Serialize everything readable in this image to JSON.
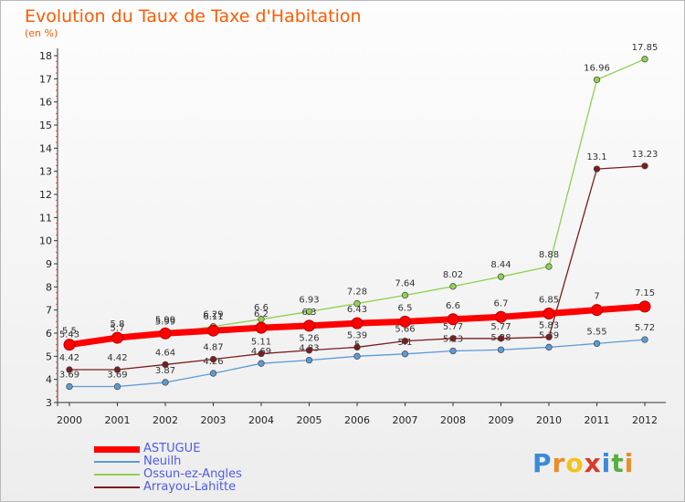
{
  "chart_data": {
    "type": "line",
    "title": "Evolution du Taux de Taxe d'Habitation",
    "unit_label": "(en %)",
    "x": [
      "2000",
      "2001",
      "2002",
      "2003",
      "2004",
      "2005",
      "2006",
      "2007",
      "2008",
      "2009",
      "2010",
      "2011",
      "2012"
    ],
    "ylim": [
      3,
      18
    ],
    "yticks": [
      3,
      4,
      5,
      6,
      7,
      8,
      9,
      10,
      11,
      12,
      13,
      14,
      15,
      16,
      17,
      18
    ],
    "grid": false,
    "legend_position": "bottom-left",
    "series": [
      {
        "name": "ASTUGUE",
        "color": "#ff0000",
        "values": [
          5.5,
          5.8,
          5.99,
          6.11,
          6.23,
          6.32,
          6.43,
          6.5,
          6.6,
          6.7,
          6.85,
          7,
          7.15
        ],
        "labels": [
          "5.5",
          "5.8",
          "5.99",
          "6.11",
          "6.2",
          "6.3",
          "6.43",
          "6.5",
          "6.6",
          "6.7",
          "6.85",
          "7",
          "7.15"
        ]
      },
      {
        "name": "Neuilh",
        "color": "#5b9bd5",
        "values": [
          3.69,
          3.69,
          3.87,
          4.26,
          4.69,
          4.83,
          5,
          5.1,
          5.23,
          5.28,
          5.39,
          5.55,
          5.72
        ],
        "labels": [
          "3.69",
          "3.69",
          "3.87",
          "4.26",
          "4.69",
          "4.83",
          "5",
          "5.1",
          "5.23",
          "5.28",
          "5.39",
          "5.55",
          "5.72"
        ]
      },
      {
        "name": "Ossun-ez-Angles",
        "color": "#8fd14f",
        "values": [
          5.43,
          5.7,
          5.99,
          6.29,
          6.6,
          6.93,
          7.28,
          7.64,
          8.02,
          8.44,
          8.88,
          16.96,
          17.85
        ],
        "labels": [
          "5.43",
          "5.7",
          "5.99",
          "6.29",
          "6.6",
          "6.93",
          "7.28",
          "7.64",
          "8.02",
          "8.44",
          "8.88",
          "16.96",
          "17.85"
        ]
      },
      {
        "name": "Arrayou-Lahitte",
        "color": "#7b1d1d",
        "values": [
          4.42,
          4.42,
          4.64,
          4.87,
          5.11,
          5.26,
          5.39,
          5.66,
          5.77,
          5.77,
          5.83,
          13.1,
          13.23
        ],
        "labels": [
          "4.42",
          "4.42",
          "4.64",
          "4.87",
          "5.11",
          "5.26",
          "5.39",
          "5.66",
          "5.77",
          "5.77",
          "5.83",
          "13.1",
          "13.23"
        ]
      }
    ]
  },
  "logo": {
    "text": "Proxiti",
    "letters": [
      "P",
      "r",
      "o",
      "x",
      "i",
      "t",
      "i"
    ]
  }
}
